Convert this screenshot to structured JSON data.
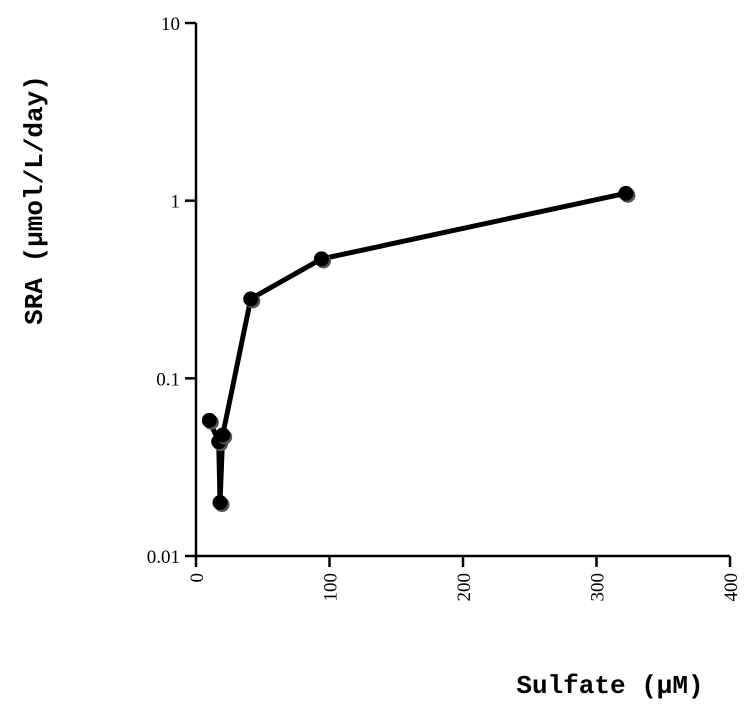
{
  "chart_data": {
    "type": "line",
    "title": "",
    "xlabel": "Sulfate (µM)",
    "ylabel": "SRA (µmol/L/day)",
    "x_axis": {
      "scale": "linear",
      "range": [
        0,
        400
      ],
      "ticks": [
        0,
        100,
        200,
        300,
        400
      ],
      "tick_labels": [
        "0",
        "100",
        "200",
        "300",
        "400"
      ]
    },
    "y_axis": {
      "scale": "log",
      "range": [
        0.01,
        10
      ],
      "ticks": [
        0.01,
        0.1,
        1,
        10
      ],
      "tick_labels": [
        "0.01",
        "0.1",
        "1",
        "10"
      ]
    },
    "grid": false,
    "legend": "none",
    "series": [
      {
        "color": "#000000",
        "marker": "circle",
        "points": [
          {
            "x": 10,
            "y": 0.058
          },
          {
            "x": 17,
            "y": 0.044
          },
          {
            "x": 18,
            "y": 0.02
          },
          {
            "x": 20,
            "y": 0.048
          },
          {
            "x": 41,
            "y": 0.28
          },
          {
            "x": 94,
            "y": 0.47
          },
          {
            "x": 322,
            "y": 1.1
          }
        ]
      }
    ]
  }
}
